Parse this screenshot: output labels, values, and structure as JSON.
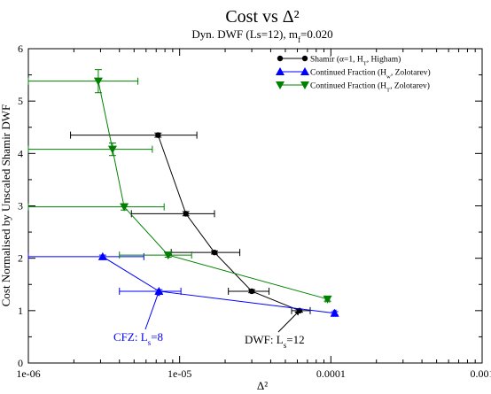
{
  "chart_data": {
    "type": "scatter",
    "title": "Cost vs Δ²",
    "subtitle": "Dyn. DWF (Ls=12), m_f=0.020",
    "xlabel": "Δ²",
    "ylabel": "Cost Normalised by Unscaled Shamir DWF",
    "xscale": "log",
    "xlim": [
      1e-06,
      0.001
    ],
    "ylim": [
      0,
      6
    ],
    "xticks": [
      {
        "value": 1e-06,
        "label": "1e-06"
      },
      {
        "value": 1e-05,
        "label": "1e-05"
      },
      {
        "value": 0.0001,
        "label": "0.0001"
      },
      {
        "value": 0.001,
        "label": "0.001"
      }
    ],
    "yticks": [
      {
        "value": 0,
        "label": "0"
      },
      {
        "value": 1,
        "label": "1"
      },
      {
        "value": 2,
        "label": "2"
      },
      {
        "value": 3,
        "label": "3"
      },
      {
        "value": 4,
        "label": "4"
      },
      {
        "value": 5,
        "label": "5"
      },
      {
        "value": 6,
        "label": "6"
      }
    ],
    "legend_position": "top-right",
    "series": [
      {
        "name": "Shamir (α=1, H_T, Higham)",
        "color": "#000000",
        "marker": "circle",
        "points": [
          {
            "x": 7.2e-06,
            "y": 4.35,
            "xlo": 1.9e-06,
            "xhi": 1.3e-05,
            "yerr": 0.04
          },
          {
            "x": 1.1e-05,
            "y": 2.85,
            "xlo": 4.8e-06,
            "xhi": 1.7e-05,
            "yerr": 0.04
          },
          {
            "x": 1.7e-05,
            "y": 2.11,
            "xlo": 8.8e-06,
            "xhi": 2.5e-05,
            "yerr": 0.03
          },
          {
            "x": 3e-05,
            "y": 1.37,
            "xlo": 2.1e-05,
            "xhi": 3.9e-05,
            "yerr": 0.03
          },
          {
            "x": 6.2e-05,
            "y": 1.0,
            "xlo": 5.5e-05,
            "xhi": 7.3e-05,
            "yerr": 0.03
          }
        ]
      },
      {
        "name": "Continued Fraction (H_w, Zolotarev)",
        "color": "#0000ff",
        "marker": "triangle-up",
        "points": [
          {
            "x": 3.1e-06,
            "y": 2.03,
            "xlo": 1e-06,
            "xhi": 5.8e-06,
            "yerr": 0.03
          },
          {
            "x": 7.3e-06,
            "y": 1.37,
            "xlo": 4e-06,
            "xhi": 1.02e-05,
            "yerr": 0.03
          },
          {
            "x": 0.000106,
            "y": 0.95,
            "xlo": 0.000104,
            "xhi": 0.000108,
            "yerr": 0.03
          }
        ]
      },
      {
        "name": "Continued Fraction (H_T, Zolotarev)",
        "color": "#008000",
        "marker": "triangle-down",
        "points": [
          {
            "x": 2.9e-06,
            "y": 5.38,
            "xlo": 1e-06,
            "xhi": 5.3e-06,
            "yerr": 0.22
          },
          {
            "x": 3.6e-06,
            "y": 4.08,
            "xlo": 1e-06,
            "xhi": 6.6e-06,
            "yerr": 0.12
          },
          {
            "x": 4.3e-06,
            "y": 2.98,
            "xlo": 1e-06,
            "xhi": 7.9e-06,
            "yerr": 0.06
          },
          {
            "x": 8.4e-06,
            "y": 2.06,
            "xlo": 4e-06,
            "xhi": 1.2e-05,
            "yerr": 0.04
          },
          {
            "x": 9.5e-05,
            "y": 1.22,
            "xlo": 9.2e-05,
            "xhi": 9.8e-05,
            "yerr": 0.04
          }
        ]
      }
    ],
    "annotations": [
      {
        "text": "CFZ: L_s=8",
        "color": "#0000ff",
        "arrow_to": {
          "x": 7.3e-06,
          "y": 1.37
        }
      },
      {
        "text": "DWF: L_s=12",
        "color": "#000000",
        "arrow_to": {
          "x": 6.2e-05,
          "y": 1.0
        }
      }
    ]
  }
}
